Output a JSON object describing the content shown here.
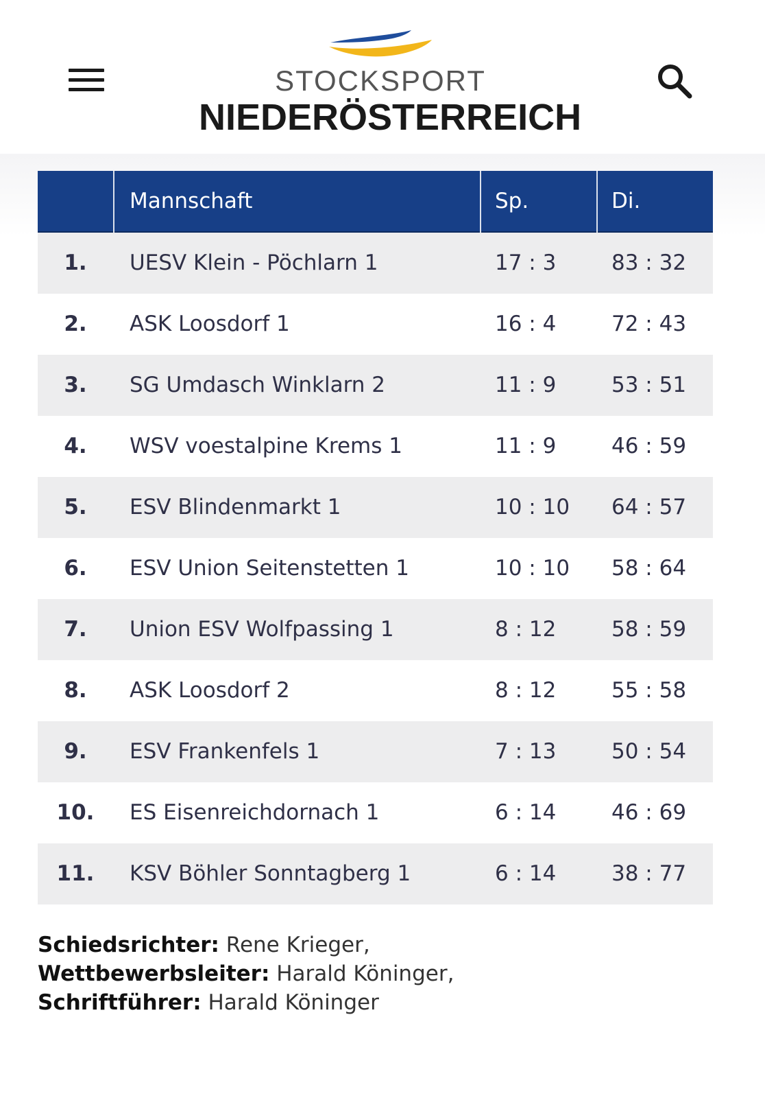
{
  "header": {
    "logo_top": "STOCKSPORT",
    "logo_bottom": "NIEDERÖSTERREICH",
    "icons": {
      "menu": "hamburger-menu-icon",
      "search": "search-icon"
    },
    "colors": {
      "swoosh_blue": "#1f4d9c",
      "swoosh_yellow": "#f2b61a",
      "brand_navy": "#173f87"
    }
  },
  "table": {
    "columns": {
      "rank": "",
      "team": "Mannschaft",
      "sp": "Sp.",
      "di": "Di."
    },
    "rows": [
      {
        "rank": "1.",
        "team": "UESV Klein - Pöchlarn 1",
        "sp": "17 : 3",
        "di": "83 : 32"
      },
      {
        "rank": "2.",
        "team": "ASK Loosdorf 1",
        "sp": "16 : 4",
        "di": "72 : 43"
      },
      {
        "rank": "3.",
        "team": "SG Umdasch Winklarn 2",
        "sp": "11 : 9",
        "di": "53 : 51"
      },
      {
        "rank": "4.",
        "team": "WSV voestalpine Krems 1",
        "sp": "11 : 9",
        "di": "46 : 59"
      },
      {
        "rank": "5.",
        "team": "ESV Blindenmarkt 1",
        "sp": "10 : 10",
        "di": "64 : 57"
      },
      {
        "rank": "6.",
        "team": "ESV Union Seitenstetten 1",
        "sp": "10 : 10",
        "di": "58 : 64"
      },
      {
        "rank": "7.",
        "team": "Union ESV Wolfpassing 1",
        "sp": "8 : 12",
        "di": "58 : 59"
      },
      {
        "rank": "8.",
        "team": "ASK Loosdorf 2",
        "sp": "8 : 12",
        "di": "55 : 58"
      },
      {
        "rank": "9.",
        "team": "ESV Frankenfels 1",
        "sp": "7 : 13",
        "di": "50 : 54"
      },
      {
        "rank": "10.",
        "team": "ES Eisenreichdornach 1",
        "sp": "6 : 14",
        "di": "46 : 69"
      },
      {
        "rank": "11.",
        "team": "KSV Böhler Sonntagberg 1",
        "sp": "6 : 14",
        "di": "38 : 77"
      }
    ]
  },
  "officials": {
    "referee_label": "Schiedsrichter:",
    "referee_value": " Rene Krieger,",
    "director_label": "Wettbewerbsleiter:",
    "director_value": " Harald Köninger,",
    "recorder_label": "Schriftführer:",
    "recorder_value": " Harald Köninger"
  }
}
